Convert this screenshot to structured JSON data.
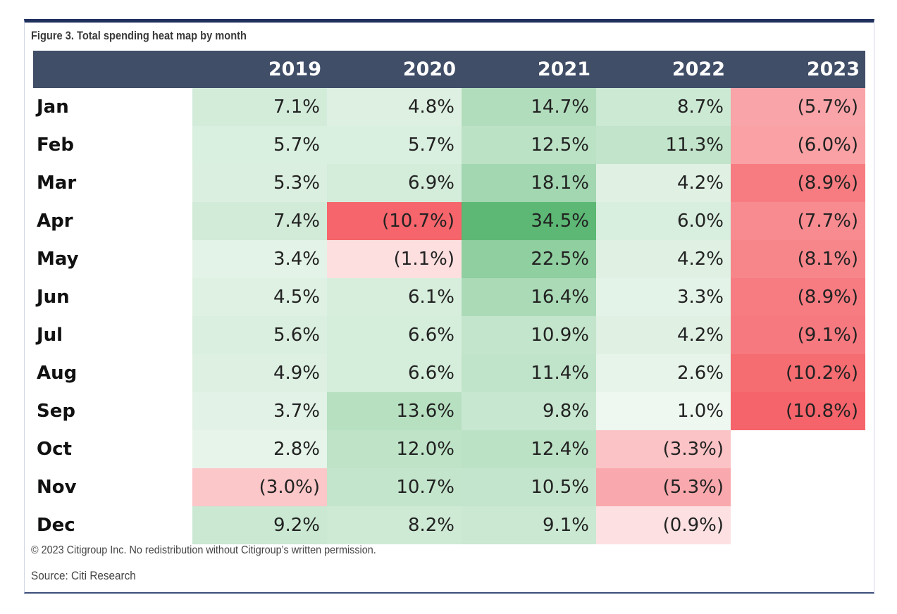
{
  "figure": {
    "title": "Figure 3. Total spending heat map by month",
    "copyright": "© 2023 Citigroup Inc. No redistribution without Citigroup’s written permission.",
    "source": "Source: Citi Research"
  },
  "chart_data": {
    "type": "heatmap",
    "title": "Figure 3. Total spending heat map by month",
    "columns": [
      "2019",
      "2020",
      "2021",
      "2022",
      "2023"
    ],
    "rows": [
      "Jan",
      "Feb",
      "Mar",
      "Apr",
      "May",
      "Jun",
      "Jul",
      "Aug",
      "Sep",
      "Oct",
      "Nov",
      "Dec"
    ],
    "unit": "%",
    "values": [
      [
        7.1,
        4.8,
        14.7,
        8.7,
        -5.7
      ],
      [
        5.7,
        5.7,
        12.5,
        11.3,
        -6.0
      ],
      [
        5.3,
        6.9,
        18.1,
        4.2,
        -8.9
      ],
      [
        7.4,
        -10.7,
        34.5,
        6.0,
        -7.7
      ],
      [
        3.4,
        -1.1,
        22.5,
        4.2,
        -8.1
      ],
      [
        4.5,
        6.1,
        16.4,
        3.3,
        -8.9
      ],
      [
        5.6,
        6.6,
        10.9,
        4.2,
        -9.1
      ],
      [
        4.9,
        6.6,
        11.4,
        2.6,
        -10.2
      ],
      [
        3.7,
        13.6,
        9.8,
        1.0,
        -10.8
      ],
      [
        2.8,
        12.0,
        12.4,
        -3.3,
        null
      ],
      [
        -3.0,
        10.7,
        10.5,
        -5.3,
        null
      ],
      [
        9.2,
        8.2,
        9.1,
        -0.9,
        null
      ]
    ],
    "labels": [
      [
        "7.1%",
        "4.8%",
        "14.7%",
        "8.7%",
        "(5.7%)"
      ],
      [
        "5.7%",
        "5.7%",
        "12.5%",
        "11.3%",
        "(6.0%)"
      ],
      [
        "5.3%",
        "6.9%",
        "18.1%",
        "4.2%",
        "(8.9%)"
      ],
      [
        "7.4%",
        "(10.7%)",
        "34.5%",
        "6.0%",
        "(7.7%)"
      ],
      [
        "3.4%",
        "(1.1%)",
        "22.5%",
        "4.2%",
        "(8.1%)"
      ],
      [
        "4.5%",
        "6.1%",
        "16.4%",
        "3.3%",
        "(8.9%)"
      ],
      [
        "5.6%",
        "6.6%",
        "10.9%",
        "4.2%",
        "(9.1%)"
      ],
      [
        "4.9%",
        "6.6%",
        "11.4%",
        "2.6%",
        "(10.2%)"
      ],
      [
        "3.7%",
        "13.6%",
        "9.8%",
        "1.0%",
        "(10.8%)"
      ],
      [
        "2.8%",
        "12.0%",
        "12.4%",
        "(3.3%)",
        ""
      ],
      [
        "(3.0%)",
        "10.7%",
        "10.5%",
        "(5.3%)",
        ""
      ],
      [
        "9.2%",
        "8.2%",
        "9.1%",
        "(0.9%)",
        ""
      ]
    ],
    "color_scale": {
      "positive_max": "#5cb874",
      "neutral": "#ffffff",
      "negative_max": "#f5646a",
      "positive_ref": 34.5,
      "negative_ref": -10.8
    },
    "header_color": "#414e68"
  }
}
